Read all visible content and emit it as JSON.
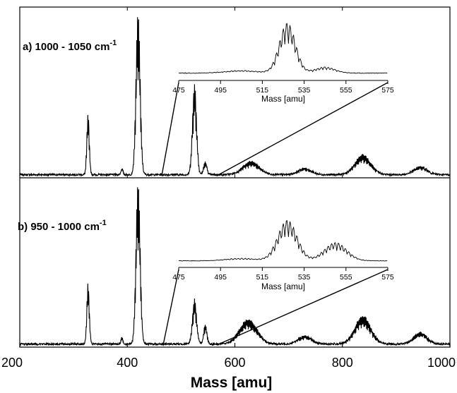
{
  "chart_data": {
    "type": "line",
    "xlabel": "Mass [amu]",
    "xlim": [
      200,
      1000
    ],
    "x_ticks": [
      "200",
      "400",
      "600",
      "800",
      "1000"
    ],
    "ylabel": "",
    "y_ticks_labeled": false,
    "grid": false,
    "panels": [
      {
        "id": "a",
        "label_prefix": "a) ",
        "label_main": "1000 - 1050 cm",
        "label_sup": "-1",
        "peaks": [
          {
            "mass": 327,
            "width": 6,
            "height": 0.37
          },
          {
            "mass": 390,
            "width": 5,
            "height": 0.04
          },
          {
            "mass": 420,
            "width": 10,
            "height": 1.0
          },
          {
            "mass": 525,
            "width": 10,
            "height": 0.55
          },
          {
            "mass": 545,
            "width": 8,
            "height": 0.08
          },
          {
            "mass": 630,
            "width": 40,
            "height": 0.08
          },
          {
            "mass": 730,
            "width": 32,
            "height": 0.04
          },
          {
            "mass": 838,
            "width": 38,
            "height": 0.12
          },
          {
            "mass": 945,
            "width": 32,
            "height": 0.05
          }
        ],
        "inset": {
          "xlabel": "Mass [amu]",
          "xlim": [
            475,
            575
          ],
          "x_ticks": [
            "475",
            "495",
            "515",
            "535",
            "555",
            "575"
          ],
          "peaks": [
            {
              "mass": 527,
              "width": 10,
              "height": 1.0
            },
            {
              "mass": 505,
              "width": 20,
              "height": 0.05
            },
            {
              "mass": 545,
              "width": 12,
              "height": 0.12
            }
          ]
        }
      },
      {
        "id": "b",
        "label_prefix": "b) ",
        "label_main": "950   - 1000 cm",
        "label_sup": "-1",
        "peaks": [
          {
            "mass": 327,
            "width": 6,
            "height": 0.37
          },
          {
            "mass": 390,
            "width": 5,
            "height": 0.04
          },
          {
            "mass": 420,
            "width": 10,
            "height": 1.0
          },
          {
            "mass": 525,
            "width": 10,
            "height": 0.27
          },
          {
            "mass": 545,
            "width": 8,
            "height": 0.12
          },
          {
            "mass": 625,
            "width": 42,
            "height": 0.15
          },
          {
            "mass": 730,
            "width": 32,
            "height": 0.05
          },
          {
            "mass": 838,
            "width": 38,
            "height": 0.17
          },
          {
            "mass": 945,
            "width": 32,
            "height": 0.07
          }
        ],
        "inset": {
          "xlabel": "Mass [amu]",
          "xlim": [
            475,
            575
          ],
          "x_ticks": [
            "475",
            "495",
            "515",
            "535",
            "555",
            "575"
          ],
          "peaks": [
            {
              "mass": 527,
              "width": 12,
              "height": 1.0
            },
            {
              "mass": 550,
              "width": 14,
              "height": 0.45
            },
            {
              "mass": 505,
              "width": 20,
              "height": 0.06
            }
          ]
        }
      }
    ]
  }
}
